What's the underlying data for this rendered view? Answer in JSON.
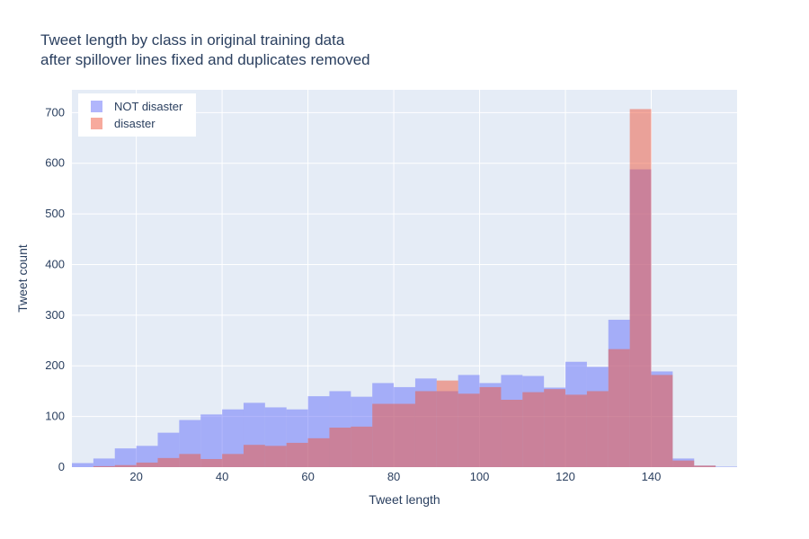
{
  "chart_data": {
    "type": "histogram",
    "title": "Tweet length by class in original training data",
    "subtitle": "after spillover lines fixed and duplicates removed",
    "xlabel": "Tweet length",
    "ylabel": "Tweet count",
    "xlim": [
      5,
      160
    ],
    "ylim": [
      0,
      745
    ],
    "x_ticks": [
      20,
      40,
      60,
      80,
      100,
      120,
      140
    ],
    "y_ticks": [
      0,
      100,
      200,
      300,
      400,
      500,
      600,
      700
    ],
    "bin_width": 5,
    "grid": true,
    "legend_position": "top-left",
    "plot_background": "#e5ecf6",
    "series": [
      {
        "name": "NOT disaster",
        "color": "#636efa",
        "opacity": 0.5,
        "bins": [
          {
            "x0": 0,
            "x1": 5,
            "count": 3
          },
          {
            "x0": 5,
            "x1": 10,
            "count": 8
          },
          {
            "x0": 10,
            "x1": 15,
            "count": 17
          },
          {
            "x0": 15,
            "x1": 20,
            "count": 37
          },
          {
            "x0": 20,
            "x1": 25,
            "count": 42
          },
          {
            "x0": 25,
            "x1": 30,
            "count": 68
          },
          {
            "x0": 30,
            "x1": 35,
            "count": 93
          },
          {
            "x0": 35,
            "x1": 40,
            "count": 104
          },
          {
            "x0": 40,
            "x1": 45,
            "count": 114
          },
          {
            "x0": 45,
            "x1": 50,
            "count": 127
          },
          {
            "x0": 50,
            "x1": 55,
            "count": 118
          },
          {
            "x0": 55,
            "x1": 60,
            "count": 114
          },
          {
            "x0": 60,
            "x1": 65,
            "count": 140
          },
          {
            "x0": 65,
            "x1": 70,
            "count": 150
          },
          {
            "x0": 70,
            "x1": 75,
            "count": 139
          },
          {
            "x0": 75,
            "x1": 80,
            "count": 166
          },
          {
            "x0": 80,
            "x1": 85,
            "count": 158
          },
          {
            "x0": 85,
            "x1": 90,
            "count": 175
          },
          {
            "x0": 90,
            "x1": 95,
            "count": 150
          },
          {
            "x0": 95,
            "x1": 100,
            "count": 182
          },
          {
            "x0": 100,
            "x1": 105,
            "count": 166
          },
          {
            "x0": 105,
            "x1": 110,
            "count": 182
          },
          {
            "x0": 110,
            "x1": 115,
            "count": 180
          },
          {
            "x0": 115,
            "x1": 120,
            "count": 157
          },
          {
            "x0": 120,
            "x1": 125,
            "count": 208
          },
          {
            "x0": 125,
            "x1": 130,
            "count": 198
          },
          {
            "x0": 130,
            "x1": 135,
            "count": 291
          },
          {
            "x0": 135,
            "x1": 140,
            "count": 588
          },
          {
            "x0": 140,
            "x1": 145,
            "count": 189
          },
          {
            "x0": 145,
            "x1": 150,
            "count": 17
          },
          {
            "x0": 150,
            "x1": 155,
            "count": 3
          },
          {
            "x0": 155,
            "x1": 160,
            "count": 1
          }
        ]
      },
      {
        "name": "disaster",
        "color": "#ef553b",
        "opacity": 0.5,
        "bins": [
          {
            "x0": 10,
            "x1": 15,
            "count": 2
          },
          {
            "x0": 15,
            "x1": 20,
            "count": 4
          },
          {
            "x0": 20,
            "x1": 25,
            "count": 9
          },
          {
            "x0": 25,
            "x1": 30,
            "count": 18
          },
          {
            "x0": 30,
            "x1": 35,
            "count": 26
          },
          {
            "x0": 35,
            "x1": 40,
            "count": 16
          },
          {
            "x0": 40,
            "x1": 45,
            "count": 26
          },
          {
            "x0": 45,
            "x1": 50,
            "count": 44
          },
          {
            "x0": 50,
            "x1": 55,
            "count": 42
          },
          {
            "x0": 55,
            "x1": 60,
            "count": 48
          },
          {
            "x0": 60,
            "x1": 65,
            "count": 57
          },
          {
            "x0": 65,
            "x1": 70,
            "count": 78
          },
          {
            "x0": 70,
            "x1": 75,
            "count": 80
          },
          {
            "x0": 75,
            "x1": 80,
            "count": 125
          },
          {
            "x0": 80,
            "x1": 85,
            "count": 125
          },
          {
            "x0": 85,
            "x1": 90,
            "count": 150
          },
          {
            "x0": 90,
            "x1": 95,
            "count": 171
          },
          {
            "x0": 95,
            "x1": 100,
            "count": 145
          },
          {
            "x0": 100,
            "x1": 105,
            "count": 158
          },
          {
            "x0": 105,
            "x1": 110,
            "count": 133
          },
          {
            "x0": 110,
            "x1": 115,
            "count": 148
          },
          {
            "x0": 115,
            "x1": 120,
            "count": 154
          },
          {
            "x0": 120,
            "x1": 125,
            "count": 143
          },
          {
            "x0": 125,
            "x1": 130,
            "count": 150
          },
          {
            "x0": 130,
            "x1": 135,
            "count": 233
          },
          {
            "x0": 135,
            "x1": 140,
            "count": 707
          },
          {
            "x0": 140,
            "x1": 145,
            "count": 182
          },
          {
            "x0": 145,
            "x1": 150,
            "count": 13
          },
          {
            "x0": 150,
            "x1": 155,
            "count": 3
          }
        ]
      }
    ]
  }
}
